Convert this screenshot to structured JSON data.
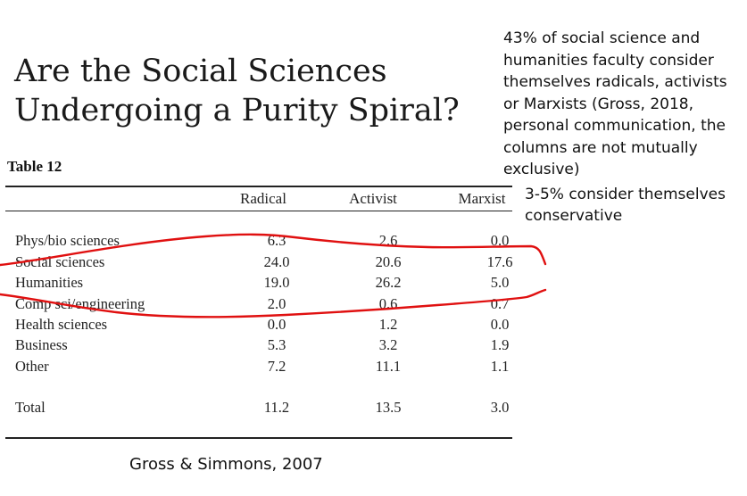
{
  "title": {
    "line1": "Are the Social Sciences",
    "line2": "Undergoing a Purity Spiral?"
  },
  "note_right": "43% of social science and humanities faculty consider themselves radicals, activists or Marxists (Gross, 2018, personal communication, the columns are not mutually exclusive)",
  "note_conservative": "3-5% consider themselves conservative",
  "caption": "Gross & Simmons, 2007",
  "table": {
    "label": "Table 12",
    "columns": [
      "Radical",
      "Activist",
      "Marxist"
    ],
    "rows": [
      {
        "label": "Phys/bio sciences",
        "values": [
          "6.3",
          "2.6",
          "0.0"
        ]
      },
      {
        "label": "Social sciences",
        "values": [
          "24.0",
          "20.6",
          "17.6"
        ]
      },
      {
        "label": "Humanities",
        "values": [
          "19.0",
          "26.2",
          "5.0"
        ]
      },
      {
        "label": "Comp sci/engineering",
        "values": [
          "2.0",
          "0.6",
          "0.7"
        ]
      },
      {
        "label": "Health sciences",
        "values": [
          "0.0",
          "1.2",
          "0.0"
        ]
      },
      {
        "label": "Business",
        "values": [
          "5.3",
          "3.2",
          "1.9"
        ]
      },
      {
        "label": "Other",
        "values": [
          "7.2",
          "11.1",
          "1.1"
        ]
      }
    ],
    "total": {
      "label": "Total",
      "values": [
        "11.2",
        "13.5",
        "3.0"
      ]
    }
  },
  "colors": {
    "annotation": "#e01010",
    "text": "#111111"
  }
}
